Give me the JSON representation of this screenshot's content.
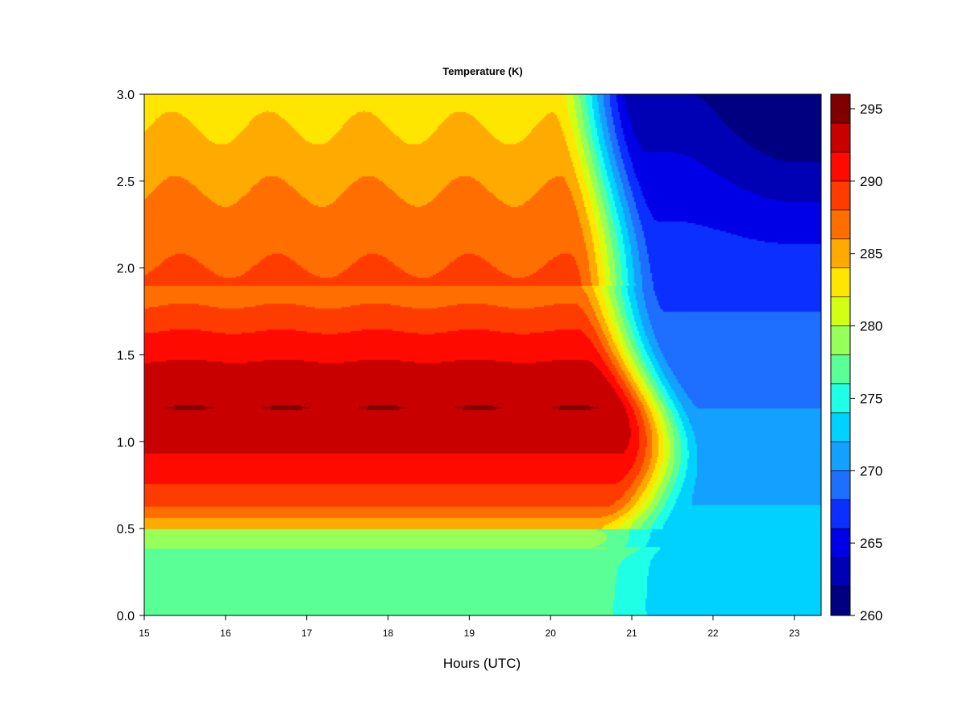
{
  "chart_data": {
    "type": "heatmap",
    "title": "Temperature (K)",
    "xlabel": "Hours (UTC)",
    "ylabel": "",
    "xlim": [
      15,
      23.33
    ],
    "ylim": [
      0,
      3.0
    ],
    "x_ticks": [
      15,
      16,
      17,
      18,
      19,
      20,
      21,
      22,
      23
    ],
    "y_ticks": [
      "0.0",
      "0.5",
      "1.0",
      "1.5",
      "2.0",
      "2.5",
      "3.0"
    ],
    "colorbar": {
      "min": 260,
      "max": 296,
      "levels": [
        260,
        262,
        264,
        266,
        268,
        270,
        272,
        274,
        276,
        278,
        280,
        282,
        284,
        286,
        288,
        290,
        292,
        294,
        296
      ],
      "colors": [
        "#000080",
        "#0000b4",
        "#0000e6",
        "#0a2fff",
        "#1e6eff",
        "#14a0ff",
        "#00d2ff",
        "#1effe6",
        "#5aff96",
        "#96ff5a",
        "#d2ff14",
        "#ffe600",
        "#ffaa00",
        "#ff6e00",
        "#ff3c00",
        "#ff0a00",
        "#c80000",
        "#800000"
      ],
      "tick_labels": [
        "260",
        "265",
        "270",
        "275",
        "280",
        "285",
        "290",
        "295"
      ],
      "tick_values": [
        260,
        265,
        270,
        275,
        280,
        285,
        290,
        295
      ]
    },
    "grid": false,
    "legend": "colorbar-right"
  }
}
